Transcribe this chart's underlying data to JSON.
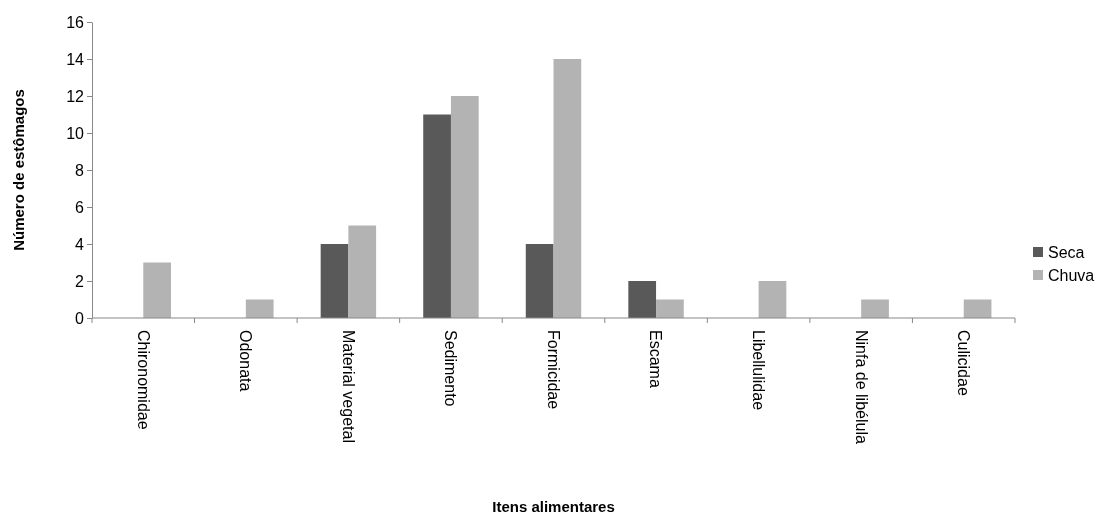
{
  "chart_data": {
    "type": "bar",
    "xlabel": "Itens alimentares",
    "ylabel": "Número de estômagos",
    "categories": [
      "Chironomidae",
      "Odonata",
      "Material vegetal",
      "Sedimento",
      "Formicidae",
      "Escama",
      "Libellulidae",
      "Ninfa de libélula",
      "Culicidae"
    ],
    "series": [
      {
        "name": "Seca",
        "color": "#595959",
        "values": [
          0,
          0,
          4,
          11,
          4,
          2,
          0,
          0,
          0
        ]
      },
      {
        "name": "Chuva",
        "color": "#b3b3b3",
        "values": [
          3,
          1,
          5,
          12,
          14,
          1,
          2,
          1,
          1
        ]
      }
    ],
    "ylim": [
      0,
      16
    ],
    "yticks": [
      0,
      2,
      4,
      6,
      8,
      10,
      12,
      14,
      16
    ],
    "grid": false,
    "legend": "right"
  }
}
